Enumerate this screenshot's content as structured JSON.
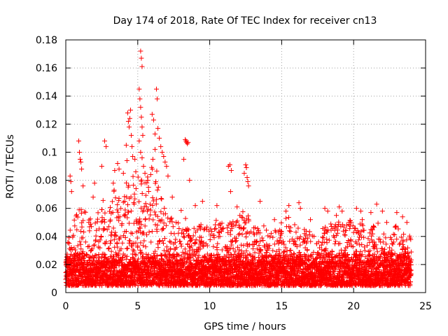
{
  "chart_data": {
    "type": "scatter",
    "title": "Day 174 of 2018, Rate Of TEC Index for receiver cn13",
    "xlabel": "GPS time / hours",
    "ylabel": "ROTI / TECUs",
    "xlim": [
      0,
      25
    ],
    "ylim": [
      0,
      0.18
    ],
    "x_ticks": [
      0,
      5,
      10,
      15,
      20,
      25
    ],
    "x_tick_labels": [
      "0",
      "5",
      "10",
      "15",
      "20",
      "25"
    ],
    "y_ticks": [
      0,
      0.02,
      0.04,
      0.06,
      0.08,
      0.1,
      0.12,
      0.14,
      0.16,
      0.18
    ],
    "y_tick_labels": [
      "0",
      "0.02",
      "0.04",
      "0.06",
      "0.08",
      "0.1",
      "0.12",
      "0.14",
      "0.16",
      "0.18"
    ],
    "grid": true,
    "marker": "+",
    "marker_color": "#ff0000",
    "data_range_hours": [
      0,
      24
    ],
    "baseline_band": [
      0.005,
      0.035
    ],
    "envelope": [
      [
        0.0,
        0.035
      ],
      [
        0.5,
        0.055
      ],
      [
        1.0,
        0.07
      ],
      [
        1.5,
        0.055
      ],
      [
        2.0,
        0.05
      ],
      [
        2.5,
        0.065
      ],
      [
        3.0,
        0.07
      ],
      [
        3.5,
        0.075
      ],
      [
        4.0,
        0.07
      ],
      [
        4.5,
        0.09
      ],
      [
        5.0,
        0.085
      ],
      [
        5.5,
        0.08
      ],
      [
        6.0,
        0.09
      ],
      [
        6.5,
        0.085
      ],
      [
        7.0,
        0.06
      ],
      [
        7.5,
        0.05
      ],
      [
        8.0,
        0.06
      ],
      [
        8.5,
        0.055
      ],
      [
        9.0,
        0.05
      ],
      [
        9.5,
        0.05
      ],
      [
        10.0,
        0.045
      ],
      [
        10.5,
        0.055
      ],
      [
        11.0,
        0.05
      ],
      [
        11.5,
        0.05
      ],
      [
        12.0,
        0.055
      ],
      [
        12.5,
        0.06
      ],
      [
        13.0,
        0.05
      ],
      [
        13.5,
        0.045
      ],
      [
        14.0,
        0.05
      ],
      [
        14.5,
        0.045
      ],
      [
        15.0,
        0.05
      ],
      [
        15.5,
        0.055
      ],
      [
        16.0,
        0.05
      ],
      [
        16.5,
        0.045
      ],
      [
        17.0,
        0.045
      ],
      [
        17.5,
        0.04
      ],
      [
        18.0,
        0.05
      ],
      [
        18.5,
        0.05
      ],
      [
        19.0,
        0.055
      ],
      [
        19.5,
        0.05
      ],
      [
        20.0,
        0.055
      ],
      [
        20.5,
        0.05
      ],
      [
        21.0,
        0.05
      ],
      [
        21.5,
        0.055
      ],
      [
        22.0,
        0.045
      ],
      [
        22.5,
        0.04
      ],
      [
        23.0,
        0.05
      ],
      [
        23.5,
        0.045
      ],
      [
        24.0,
        0.04
      ]
    ],
    "highlight_points": [
      [
        0.3,
        0.083
      ],
      [
        0.35,
        0.079
      ],
      [
        0.4,
        0.072
      ],
      [
        0.9,
        0.108
      ],
      [
        0.95,
        0.1
      ],
      [
        1.0,
        0.095
      ],
      [
        1.05,
        0.093
      ],
      [
        1.1,
        0.088
      ],
      [
        1.2,
        0.076
      ],
      [
        2.0,
        0.078
      ],
      [
        2.5,
        0.09
      ],
      [
        2.7,
        0.108
      ],
      [
        2.8,
        0.104
      ],
      [
        3.4,
        0.087
      ],
      [
        3.6,
        0.092
      ],
      [
        3.7,
        0.088
      ],
      [
        4.0,
        0.085
      ],
      [
        4.3,
        0.128
      ],
      [
        4.35,
        0.122
      ],
      [
        4.4,
        0.118
      ],
      [
        4.45,
        0.124
      ],
      [
        4.5,
        0.13
      ],
      [
        4.55,
        0.112
      ],
      [
        4.6,
        0.104
      ],
      [
        4.65,
        0.097
      ],
      [
        4.2,
        0.105
      ],
      [
        4.25,
        0.094
      ],
      [
        5.1,
        0.145
      ],
      [
        5.2,
        0.172
      ],
      [
        5.25,
        0.167
      ],
      [
        5.3,
        0.161
      ],
      [
        5.15,
        0.138
      ],
      [
        5.2,
        0.132
      ],
      [
        5.25,
        0.125
      ],
      [
        5.3,
        0.118
      ],
      [
        5.35,
        0.112
      ],
      [
        5.1,
        0.108
      ],
      [
        5.2,
        0.1
      ],
      [
        5.3,
        0.096
      ],
      [
        5.4,
        0.09
      ],
      [
        5.5,
        0.085
      ],
      [
        5.7,
        0.08
      ],
      [
        6.0,
        0.127
      ],
      [
        6.1,
        0.123
      ],
      [
        6.2,
        0.113
      ],
      [
        6.3,
        0.145
      ],
      [
        6.35,
        0.138
      ],
      [
        6.4,
        0.117
      ],
      [
        6.5,
        0.11
      ],
      [
        6.6,
        0.104
      ],
      [
        6.7,
        0.1
      ],
      [
        6.8,
        0.097
      ],
      [
        6.9,
        0.093
      ],
      [
        7.0,
        0.09
      ],
      [
        6.2,
        0.102
      ],
      [
        6.05,
        0.095
      ],
      [
        7.1,
        0.083
      ],
      [
        8.3,
        0.109
      ],
      [
        8.35,
        0.108
      ],
      [
        8.4,
        0.107
      ],
      [
        8.45,
        0.106
      ],
      [
        8.5,
        0.107
      ],
      [
        8.2,
        0.095
      ],
      [
        8.6,
        0.08
      ],
      [
        9.5,
        0.065
      ],
      [
        10.5,
        0.062
      ],
      [
        11.3,
        0.09
      ],
      [
        11.4,
        0.091
      ],
      [
        11.5,
        0.087
      ],
      [
        11.45,
        0.072
      ],
      [
        12.5,
        0.091
      ],
      [
        12.55,
        0.089
      ],
      [
        12.6,
        0.082
      ],
      [
        12.65,
        0.079
      ],
      [
        12.7,
        0.076
      ],
      [
        12.4,
        0.085
      ],
      [
        13.5,
        0.065
      ],
      [
        15.3,
        0.058
      ],
      [
        15.5,
        0.062
      ],
      [
        16.2,
        0.064
      ],
      [
        16.3,
        0.06
      ],
      [
        18.0,
        0.06
      ],
      [
        18.2,
        0.058
      ],
      [
        19.0,
        0.061
      ],
      [
        19.2,
        0.058
      ],
      [
        20.2,
        0.06
      ],
      [
        20.5,
        0.058
      ],
      [
        21.6,
        0.063
      ],
      [
        22.0,
        0.058
      ],
      [
        23.0,
        0.057
      ],
      [
        23.4,
        0.054
      ],
      [
        23.7,
        0.05
      ]
    ],
    "extra_points": [
      [
        1.9,
        0.068
      ],
      [
        3.3,
        0.078
      ],
      [
        4.8,
        0.095
      ],
      [
        5.9,
        0.084
      ],
      [
        7.4,
        0.068
      ],
      [
        9.0,
        0.062
      ],
      [
        11.9,
        0.061
      ],
      [
        14.5,
        0.052
      ],
      [
        17.0,
        0.052
      ],
      [
        18.8,
        0.055
      ],
      [
        20.6,
        0.052
      ],
      [
        21.2,
        0.057
      ],
      [
        22.3,
        0.05
      ]
    ]
  }
}
